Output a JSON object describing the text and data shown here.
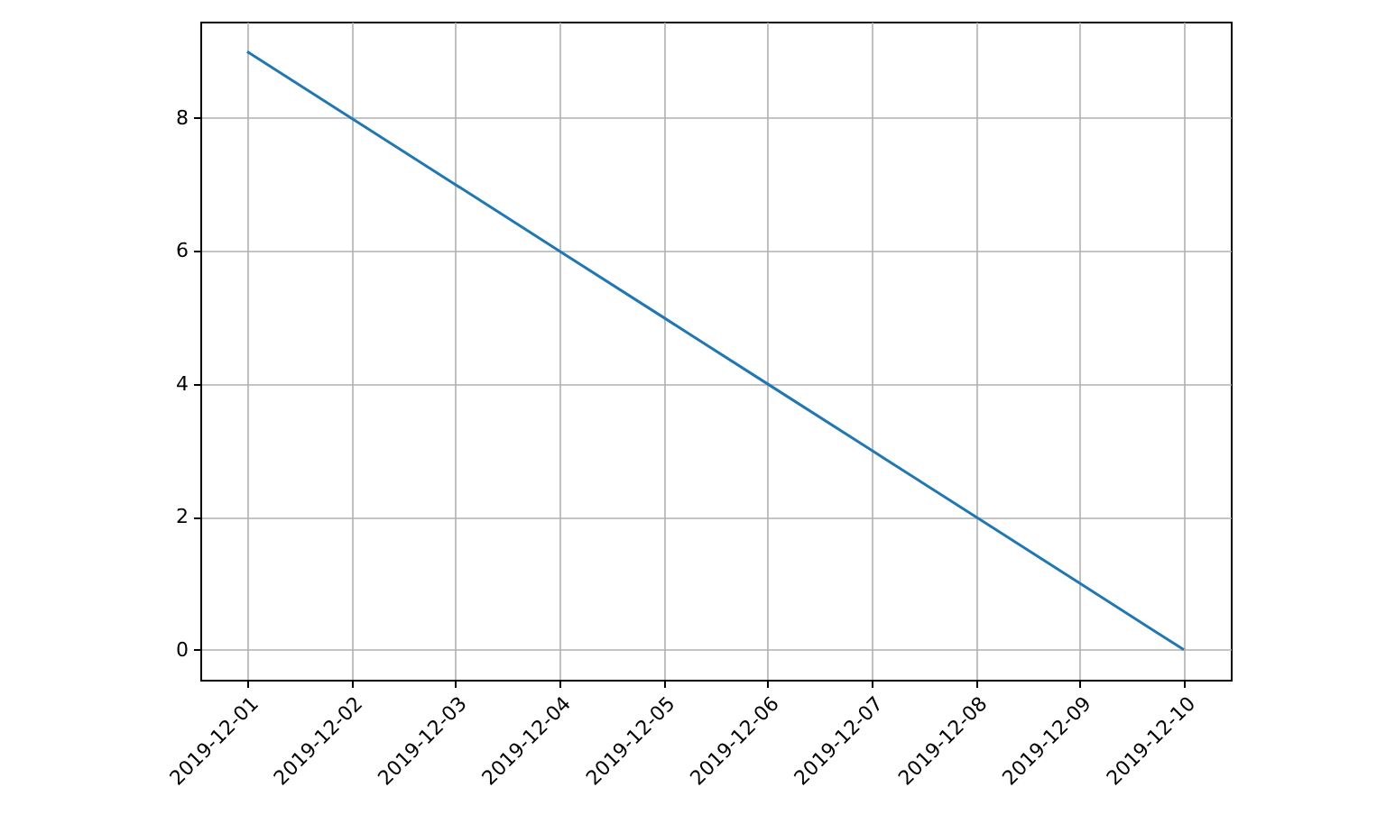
{
  "chart_data": {
    "type": "line",
    "x": [
      "2019-12-01",
      "2019-12-02",
      "2019-12-03",
      "2019-12-04",
      "2019-12-05",
      "2019-12-06",
      "2019-12-07",
      "2019-12-08",
      "2019-12-09",
      "2019-12-10"
    ],
    "series": [
      {
        "color": "#1f77b4",
        "values": [
          9,
          8,
          7,
          6,
          5,
          4,
          3,
          2,
          1,
          0
        ]
      }
    ],
    "xlim": [
      "2019-11-30T13:12",
      "2019-12-10T10:48"
    ],
    "xticks": [
      "2019-12-01",
      "2019-12-02",
      "2019-12-03",
      "2019-12-04",
      "2019-12-05",
      "2019-12-06",
      "2019-12-07",
      "2019-12-08",
      "2019-12-09",
      "2019-12-10"
    ],
    "ylim": [
      -0.45,
      9.45
    ],
    "yticks": [
      0,
      2,
      4,
      6,
      8
    ],
    "grid": true,
    "line_style": "solid",
    "marker": "none"
  }
}
